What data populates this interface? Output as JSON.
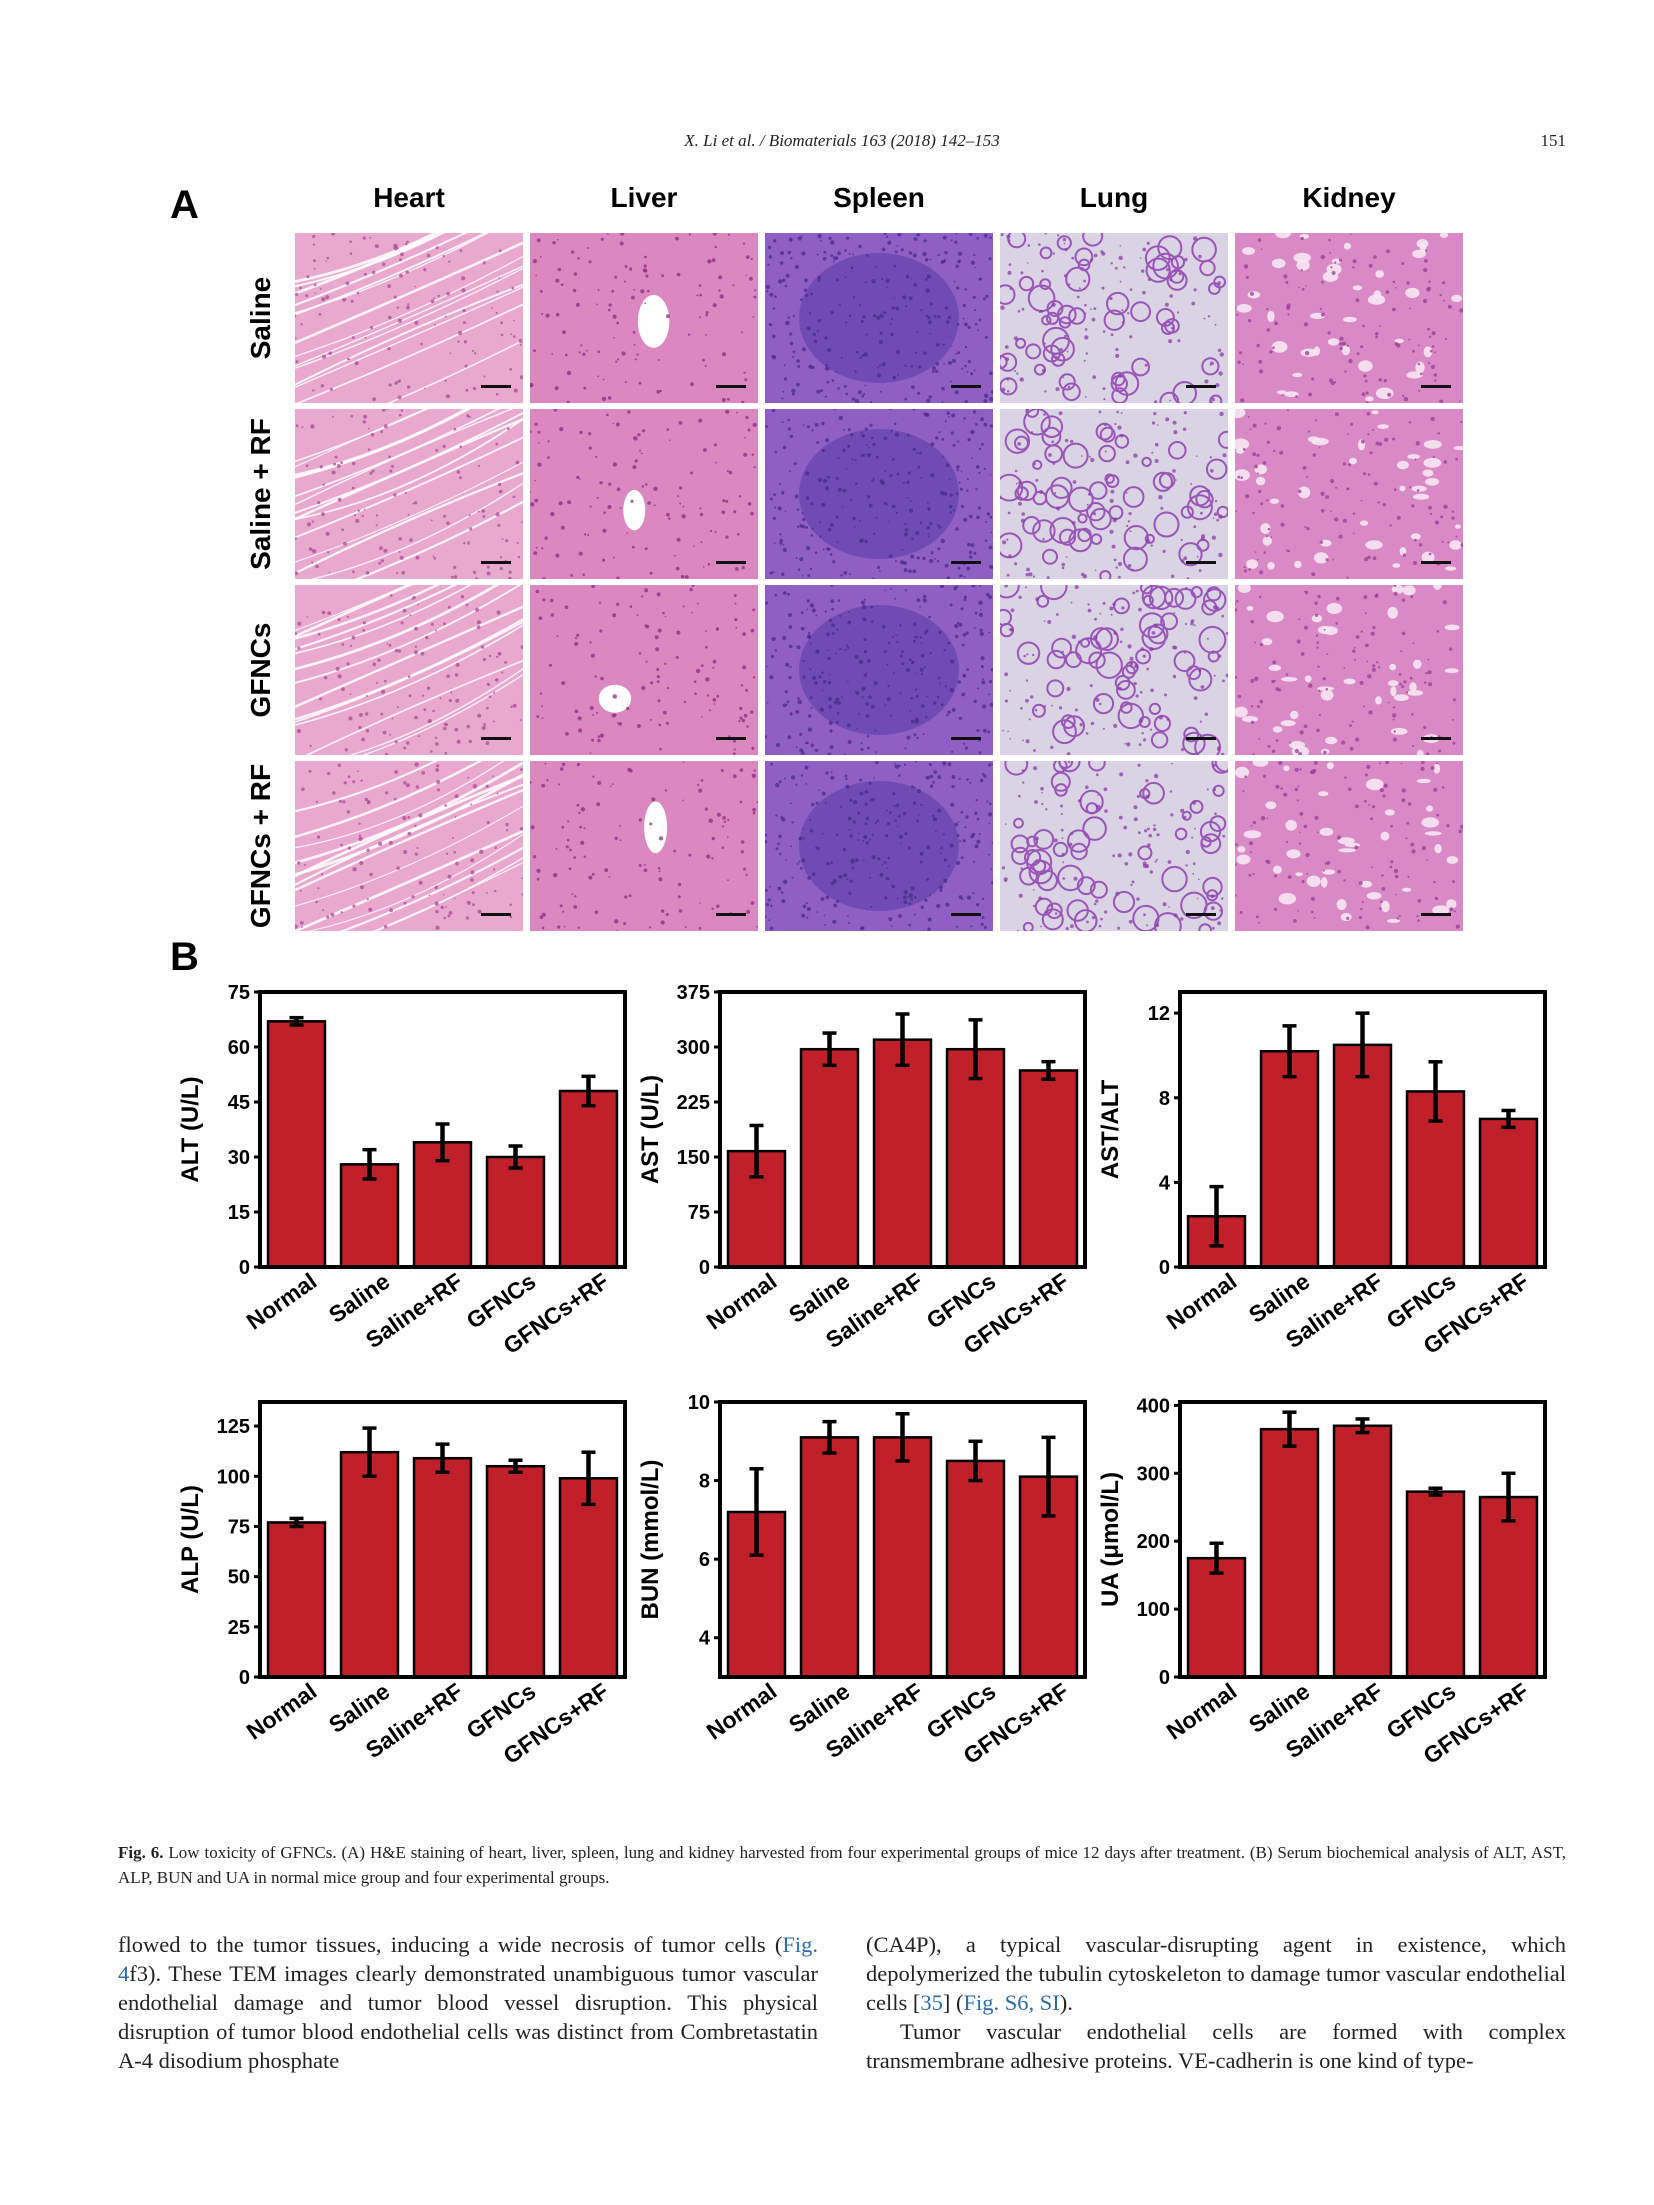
{
  "header": {
    "citation": "X. Li et al. / Biomaterials 163 (2018) 142–153",
    "page_number": "151"
  },
  "panel_a": {
    "letter": "A",
    "columns": [
      "Heart",
      "Liver",
      "Spleen",
      "Lung",
      "Kidney"
    ],
    "rows": [
      "Saline",
      "Saline + RF",
      "GFNCs",
      "GFNCs + RF"
    ]
  },
  "panel_b": {
    "letter": "B"
  },
  "chart_data": [
    {
      "type": "bar",
      "categories": [
        "Normal",
        "Saline",
        "Saline+RF",
        "GFNCs",
        "GFNCs+RF"
      ],
      "values": [
        67,
        28,
        34,
        30,
        48
      ],
      "errors": [
        1,
        4,
        5,
        3,
        4
      ],
      "ylabel": "ALT (U/L)",
      "ylim": [
        0,
        75
      ],
      "yticks": [
        0,
        15,
        30,
        45,
        60,
        75
      ],
      "color": "#c0202a"
    },
    {
      "type": "bar",
      "categories": [
        "Normal",
        "Saline",
        "Saline+RF",
        "GFNCs",
        "GFNCs+RF"
      ],
      "values": [
        158,
        297,
        310,
        297,
        268
      ],
      "errors": [
        35,
        22,
        35,
        40,
        12
      ],
      "ylabel": "AST (U/L)",
      "ylim": [
        0,
        375
      ],
      "yticks": [
        0,
        75,
        150,
        225,
        300,
        375
      ],
      "color": "#c0202a"
    },
    {
      "type": "bar",
      "categories": [
        "Normal",
        "Saline",
        "Saline+RF",
        "GFNCs",
        "GFNCs+RF"
      ],
      "values": [
        2.4,
        10.2,
        10.5,
        8.3,
        7.0
      ],
      "errors": [
        1.4,
        1.2,
        1.5,
        1.4,
        0.4
      ],
      "ylabel": "AST/ALT",
      "ylim": [
        0,
        13
      ],
      "yticks": [
        0,
        4,
        8,
        12
      ],
      "color": "#c0202a"
    },
    {
      "type": "bar",
      "categories": [
        "Normal",
        "Saline",
        "Saline+RF",
        "GFNCs",
        "GFNCs+RF"
      ],
      "values": [
        77,
        112,
        109,
        105,
        99
      ],
      "errors": [
        2,
        12,
        7,
        3,
        13
      ],
      "ylabel": "ALP (U/L)",
      "ylim": [
        0,
        137
      ],
      "yticks": [
        0,
        25,
        50,
        75,
        100,
        125
      ],
      "color": "#c0202a"
    },
    {
      "type": "bar",
      "categories": [
        "Normal",
        "Saline",
        "Saline+RF",
        "GFNCs",
        "GFNCs+RF"
      ],
      "values": [
        7.2,
        9.1,
        9.1,
        8.5,
        8.1
      ],
      "errors": [
        1.1,
        0.4,
        0.6,
        0.5,
        1.0
      ],
      "ylabel": "BUN (mmol/L)",
      "ylim": [
        3,
        10
      ],
      "yticks": [
        4,
        6,
        8,
        10
      ],
      "color": "#c0202a"
    },
    {
      "type": "bar",
      "categories": [
        "Normal",
        "Saline",
        "Saline+RF",
        "GFNCs",
        "GFNCs+RF"
      ],
      "values": [
        175,
        365,
        370,
        273,
        265
      ],
      "errors": [
        22,
        25,
        10,
        5,
        35
      ],
      "ylabel": "UA (μmol/L)",
      "ylim": [
        0,
        405
      ],
      "yticks": [
        0,
        100,
        200,
        300,
        400
      ],
      "color": "#c0202a"
    }
  ],
  "caption": {
    "label": "Fig. 6.",
    "text": " Low toxicity of GFNCs. (A) H&E staining of heart, liver, spleen, lung and kidney harvested from four experimental groups of mice 12 days after treatment. (B) Serum biochemical analysis of ALT, AST, ALP, BUN and UA in normal mice group and four experimental groups."
  },
  "body": {
    "left_1": "flowed to the tumor tissues, inducing a wide necrosis of tumor cells (",
    "left_link": "Fig. 4",
    "left_2": "f3). These TEM images clearly demonstrated unambiguous tumor vascular endothelial damage and tumor blood vessel disruption. This physical disruption of tumor blood endothelial cells was distinct from Combretastatin A-4 disodium phosphate",
    "right_1": "(CA4P), a typical vascular-disrupting agent in existence, which depolymerized the tubulin cytoskeleton to damage tumor vascular endothelial cells [",
    "right_ref": "35",
    "right_2": "] (",
    "right_link": "Fig. S6, SI",
    "right_3": ").",
    "right_para2": "Tumor vascular endothelial cells are formed with complex transmembrane adhesive proteins. VE-cadherin is one kind of type-"
  }
}
